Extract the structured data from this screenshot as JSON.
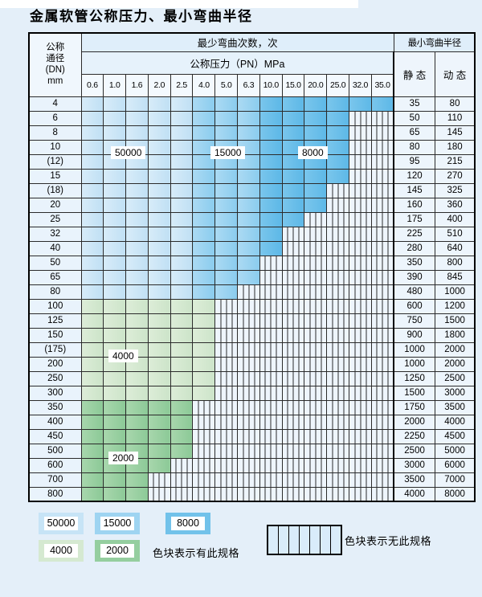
{
  "page": {
    "title": "金属软管公称压力、最小弯曲半径"
  },
  "table": {
    "header": {
      "dn_lines": [
        "公称",
        "通径",
        "(DN)",
        "mm"
      ],
      "bend_cycles_label": "最少弯曲次数，次",
      "radius_label": "最小弯曲半径",
      "pressure_label": "公称压力（PN）MPa",
      "static_label": "静 态",
      "dynamic_label": "动 态"
    },
    "overlay_labels": [
      "50000",
      "15000",
      "8000",
      "4000",
      "2000"
    ]
  },
  "legend": {
    "items": [
      {
        "value": "50000",
        "color": "#c7e4f6"
      },
      {
        "value": "15000",
        "color": "#9ed4f1"
      },
      {
        "value": "8000",
        "color": "#72c2ea"
      },
      {
        "value": "4000",
        "color": "#d5e9d1"
      },
      {
        "value": "2000",
        "color": "#95ce9f"
      }
    ],
    "has_spec_text": "色块表示有此规格",
    "no_spec_text": "色块表示无此规格",
    "no_spec_swatch": "hatched"
  },
  "chart_data": {
    "type": "heatmap",
    "title": "金属软管公称压力、最小弯曲半径",
    "x_axis_label": "公称压力（PN）MPa",
    "y_axis_label": "公称通径 (DN) mm",
    "value_meaning": "最少弯曲次数，次 (null = 无此规格)",
    "columns": [
      "0.6",
      "1.0",
      "1.6",
      "2.0",
      "2.5",
      "4.0",
      "5.0",
      "6.3",
      "10.0",
      "15.0",
      "20.0",
      "25.0",
      "32.0",
      "35.0"
    ],
    "radius_columns": [
      "静 态",
      "动 态"
    ],
    "legend_position": "bottom",
    "rows": [
      {
        "dn": "4",
        "cycles": [
          50000,
          50000,
          50000,
          50000,
          50000,
          15000,
          15000,
          15000,
          8000,
          8000,
          8000,
          8000,
          8000,
          8000
        ],
        "static": 35,
        "dynamic": 80
      },
      {
        "dn": "6",
        "cycles": [
          50000,
          50000,
          50000,
          50000,
          50000,
          15000,
          15000,
          15000,
          8000,
          8000,
          8000,
          8000,
          null,
          null
        ],
        "static": 50,
        "dynamic": 110
      },
      {
        "dn": "8",
        "cycles": [
          50000,
          50000,
          50000,
          50000,
          50000,
          15000,
          15000,
          15000,
          8000,
          8000,
          8000,
          8000,
          null,
          null
        ],
        "static": 65,
        "dynamic": 145
      },
      {
        "dn": "10",
        "cycles": [
          50000,
          50000,
          50000,
          50000,
          50000,
          15000,
          15000,
          15000,
          8000,
          8000,
          8000,
          8000,
          null,
          null
        ],
        "static": 80,
        "dynamic": 180
      },
      {
        "dn": "(12)",
        "cycles": [
          50000,
          50000,
          50000,
          50000,
          50000,
          15000,
          15000,
          15000,
          8000,
          8000,
          8000,
          8000,
          null,
          null
        ],
        "static": 95,
        "dynamic": 215
      },
      {
        "dn": "15",
        "cycles": [
          50000,
          50000,
          50000,
          50000,
          50000,
          15000,
          15000,
          15000,
          8000,
          8000,
          8000,
          8000,
          null,
          null
        ],
        "static": 120,
        "dynamic": 270
      },
      {
        "dn": "(18)",
        "cycles": [
          50000,
          50000,
          50000,
          50000,
          50000,
          15000,
          15000,
          15000,
          8000,
          8000,
          8000,
          null,
          null,
          null
        ],
        "static": 145,
        "dynamic": 325
      },
      {
        "dn": "20",
        "cycles": [
          50000,
          50000,
          50000,
          50000,
          50000,
          15000,
          15000,
          15000,
          8000,
          8000,
          8000,
          null,
          null,
          null
        ],
        "static": 160,
        "dynamic": 360
      },
      {
        "dn": "25",
        "cycles": [
          50000,
          50000,
          50000,
          50000,
          50000,
          15000,
          15000,
          15000,
          8000,
          8000,
          null,
          null,
          null,
          null
        ],
        "static": 175,
        "dynamic": 400
      },
      {
        "dn": "32",
        "cycles": [
          50000,
          50000,
          50000,
          50000,
          50000,
          15000,
          15000,
          15000,
          8000,
          null,
          null,
          null,
          null,
          null
        ],
        "static": 225,
        "dynamic": 510
      },
      {
        "dn": "40",
        "cycles": [
          50000,
          50000,
          50000,
          50000,
          50000,
          15000,
          15000,
          15000,
          8000,
          null,
          null,
          null,
          null,
          null
        ],
        "static": 280,
        "dynamic": 640
      },
      {
        "dn": "50",
        "cycles": [
          50000,
          50000,
          50000,
          50000,
          50000,
          15000,
          15000,
          15000,
          null,
          null,
          null,
          null,
          null,
          null
        ],
        "static": 350,
        "dynamic": 800
      },
      {
        "dn": "65",
        "cycles": [
          50000,
          50000,
          50000,
          50000,
          50000,
          15000,
          15000,
          15000,
          null,
          null,
          null,
          null,
          null,
          null
        ],
        "static": 390,
        "dynamic": 845
      },
      {
        "dn": "80",
        "cycles": [
          50000,
          50000,
          50000,
          50000,
          50000,
          15000,
          15000,
          null,
          null,
          null,
          null,
          null,
          null,
          null
        ],
        "static": 480,
        "dynamic": 1000
      },
      {
        "dn": "100",
        "cycles": [
          4000,
          4000,
          4000,
          4000,
          4000,
          4000,
          null,
          null,
          null,
          null,
          null,
          null,
          null,
          null
        ],
        "static": 600,
        "dynamic": 1200
      },
      {
        "dn": "125",
        "cycles": [
          4000,
          4000,
          4000,
          4000,
          4000,
          4000,
          null,
          null,
          null,
          null,
          null,
          null,
          null,
          null
        ],
        "static": 750,
        "dynamic": 1500
      },
      {
        "dn": "150",
        "cycles": [
          4000,
          4000,
          4000,
          4000,
          4000,
          4000,
          null,
          null,
          null,
          null,
          null,
          null,
          null,
          null
        ],
        "static": 900,
        "dynamic": 1800
      },
      {
        "dn": "(175)",
        "cycles": [
          4000,
          4000,
          4000,
          4000,
          4000,
          4000,
          null,
          null,
          null,
          null,
          null,
          null,
          null,
          null
        ],
        "static": 1000,
        "dynamic": 2000
      },
      {
        "dn": "200",
        "cycles": [
          4000,
          4000,
          4000,
          4000,
          4000,
          4000,
          null,
          null,
          null,
          null,
          null,
          null,
          null,
          null
        ],
        "static": 1000,
        "dynamic": 2000
      },
      {
        "dn": "250",
        "cycles": [
          4000,
          4000,
          4000,
          4000,
          4000,
          4000,
          null,
          null,
          null,
          null,
          null,
          null,
          null,
          null
        ],
        "static": 1250,
        "dynamic": 2500
      },
      {
        "dn": "300",
        "cycles": [
          4000,
          4000,
          4000,
          4000,
          4000,
          4000,
          null,
          null,
          null,
          null,
          null,
          null,
          null,
          null
        ],
        "static": 1500,
        "dynamic": 3000
      },
      {
        "dn": "350",
        "cycles": [
          2000,
          2000,
          2000,
          2000,
          2000,
          null,
          null,
          null,
          null,
          null,
          null,
          null,
          null,
          null
        ],
        "static": 1750,
        "dynamic": 3500
      },
      {
        "dn": "400",
        "cycles": [
          2000,
          2000,
          2000,
          2000,
          2000,
          null,
          null,
          null,
          null,
          null,
          null,
          null,
          null,
          null
        ],
        "static": 2000,
        "dynamic": 4000
      },
      {
        "dn": "450",
        "cycles": [
          2000,
          2000,
          2000,
          2000,
          2000,
          null,
          null,
          null,
          null,
          null,
          null,
          null,
          null,
          null
        ],
        "static": 2250,
        "dynamic": 4500
      },
      {
        "dn": "500",
        "cycles": [
          2000,
          2000,
          2000,
          2000,
          2000,
          null,
          null,
          null,
          null,
          null,
          null,
          null,
          null,
          null
        ],
        "static": 2500,
        "dynamic": 5000
      },
      {
        "dn": "600",
        "cycles": [
          2000,
          2000,
          2000,
          2000,
          null,
          null,
          null,
          null,
          null,
          null,
          null,
          null,
          null,
          null
        ],
        "static": 3000,
        "dynamic": 6000
      },
      {
        "dn": "700",
        "cycles": [
          2000,
          2000,
          2000,
          null,
          null,
          null,
          null,
          null,
          null,
          null,
          null,
          null,
          null,
          null
        ],
        "static": 3500,
        "dynamic": 7000
      },
      {
        "dn": "800",
        "cycles": [
          2000,
          2000,
          2000,
          null,
          null,
          null,
          null,
          null,
          null,
          null,
          null,
          null,
          null,
          null
        ],
        "static": 4000,
        "dynamic": 8000
      }
    ]
  }
}
